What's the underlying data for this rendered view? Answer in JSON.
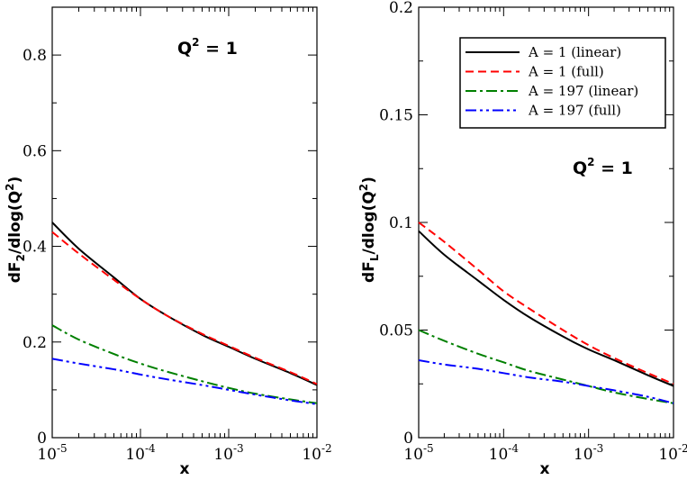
{
  "chart_data": [
    {
      "type": "line",
      "xscale": "log",
      "xlim": [
        1e-05,
        0.01
      ],
      "ylim": [
        0,
        0.9
      ],
      "yticks": [
        0,
        0.2,
        0.4,
        0.6,
        0.8
      ],
      "ytick_labels": [
        "0",
        "0.2",
        "0.4",
        "0.6",
        "0.8"
      ],
      "xtick_labels": [
        {
          "base": "10",
          "exp": "-5"
        },
        {
          "base": "10",
          "exp": "-4"
        },
        {
          "base": "10",
          "exp": "-3"
        },
        {
          "base": "10",
          "exp": "-2"
        }
      ],
      "xlabel": "x",
      "ylabel": {
        "pre": "dF",
        "sub": "2",
        "mid": "/dlog(Q",
        "sup": "2",
        "post": ")"
      },
      "annotation": {
        "pre": "Q",
        "sup": "2",
        "post": " = 1"
      },
      "series": [
        {
          "name": "A = 1 (linear)",
          "color": "#000000",
          "dash": "solid",
          "x": [
            1e-05,
            2e-05,
            5e-05,
            0.0001,
            0.0002,
            0.0005,
            0.001,
            0.002,
            0.005,
            0.01
          ],
          "y": [
            0.45,
            0.395,
            0.335,
            0.29,
            0.255,
            0.215,
            0.19,
            0.165,
            0.135,
            0.11
          ]
        },
        {
          "name": "A = 1 (full)",
          "color": "#ff0000",
          "dash": "dash",
          "x": [
            1e-05,
            2e-05,
            5e-05,
            0.0001,
            0.0002,
            0.0005,
            0.001,
            0.002,
            0.005,
            0.01
          ],
          "y": [
            0.43,
            0.385,
            0.33,
            0.29,
            0.255,
            0.217,
            0.192,
            0.167,
            0.137,
            0.112
          ]
        },
        {
          "name": "A = 197 (linear)",
          "color": "#008000",
          "dash": "dashdot",
          "x": [
            1e-05,
            2e-05,
            5e-05,
            0.0001,
            0.0002,
            0.0005,
            0.001,
            0.002,
            0.005,
            0.01
          ],
          "y": [
            0.235,
            0.205,
            0.175,
            0.155,
            0.138,
            0.118,
            0.104,
            0.092,
            0.08,
            0.072
          ]
        },
        {
          "name": "A = 197 (full)",
          "color": "#0000ff",
          "dash": "dashdotdot",
          "x": [
            1e-05,
            2e-05,
            5e-05,
            0.0001,
            0.0002,
            0.0005,
            0.001,
            0.002,
            0.005,
            0.01
          ],
          "y": [
            0.165,
            0.155,
            0.143,
            0.132,
            0.122,
            0.11,
            0.1,
            0.09,
            0.078,
            0.07
          ]
        }
      ]
    },
    {
      "type": "line",
      "xscale": "log",
      "xlim": [
        1e-05,
        0.01
      ],
      "ylim": [
        0,
        0.2
      ],
      "yticks": [
        0,
        0.05,
        0.1,
        0.15,
        0.2
      ],
      "ytick_labels": [
        "0",
        "0.05",
        "0.1",
        "0.15",
        "0.2"
      ],
      "xtick_labels": [
        {
          "base": "10",
          "exp": "-5"
        },
        {
          "base": "10",
          "exp": "-4"
        },
        {
          "base": "10",
          "exp": "-3"
        },
        {
          "base": "10",
          "exp": "-2"
        }
      ],
      "xlabel": "x",
      "ylabel": {
        "pre": "dF",
        "sub": "L",
        "mid": "/dlog(Q",
        "sup": "2",
        "post": ")"
      },
      "annotation": {
        "pre": "Q",
        "sup": "2",
        "post": " = 1"
      },
      "legend": {
        "location": "top-right",
        "entries": [
          "A = 1 (linear)",
          "A = 1 (full)",
          "A = 197 (linear)",
          "A = 197 (full)"
        ]
      },
      "series": [
        {
          "name": "A = 1 (linear)",
          "color": "#000000",
          "dash": "solid",
          "x": [
            1e-05,
            2e-05,
            5e-05,
            0.0001,
            0.0002,
            0.0005,
            0.001,
            0.002,
            0.005,
            0.01
          ],
          "y": [
            0.096,
            0.085,
            0.073,
            0.064,
            0.056,
            0.047,
            0.041,
            0.036,
            0.029,
            0.024
          ]
        },
        {
          "name": "A = 1 (full)",
          "color": "#ff0000",
          "dash": "dash",
          "x": [
            1e-05,
            2e-05,
            5e-05,
            0.0001,
            0.0002,
            0.0005,
            0.001,
            0.002,
            0.005,
            0.01
          ],
          "y": [
            0.1,
            0.091,
            0.078,
            0.068,
            0.06,
            0.05,
            0.043,
            0.037,
            0.03,
            0.025
          ]
        },
        {
          "name": "A = 197 (linear)",
          "color": "#008000",
          "dash": "dashdot",
          "x": [
            1e-05,
            2e-05,
            5e-05,
            0.0001,
            0.0002,
            0.0005,
            0.001,
            0.002,
            0.005,
            0.01
          ],
          "y": [
            0.05,
            0.045,
            0.039,
            0.035,
            0.031,
            0.027,
            0.024,
            0.021,
            0.018,
            0.016
          ]
        },
        {
          "name": "A = 197 (full)",
          "color": "#0000ff",
          "dash": "dashdotdot",
          "x": [
            1e-05,
            2e-05,
            5e-05,
            0.0001,
            0.0002,
            0.0005,
            0.001,
            0.002,
            0.005,
            0.01
          ],
          "y": [
            0.036,
            0.034,
            0.032,
            0.03,
            0.028,
            0.026,
            0.024,
            0.022,
            0.019,
            0.016
          ]
        }
      ]
    }
  ]
}
